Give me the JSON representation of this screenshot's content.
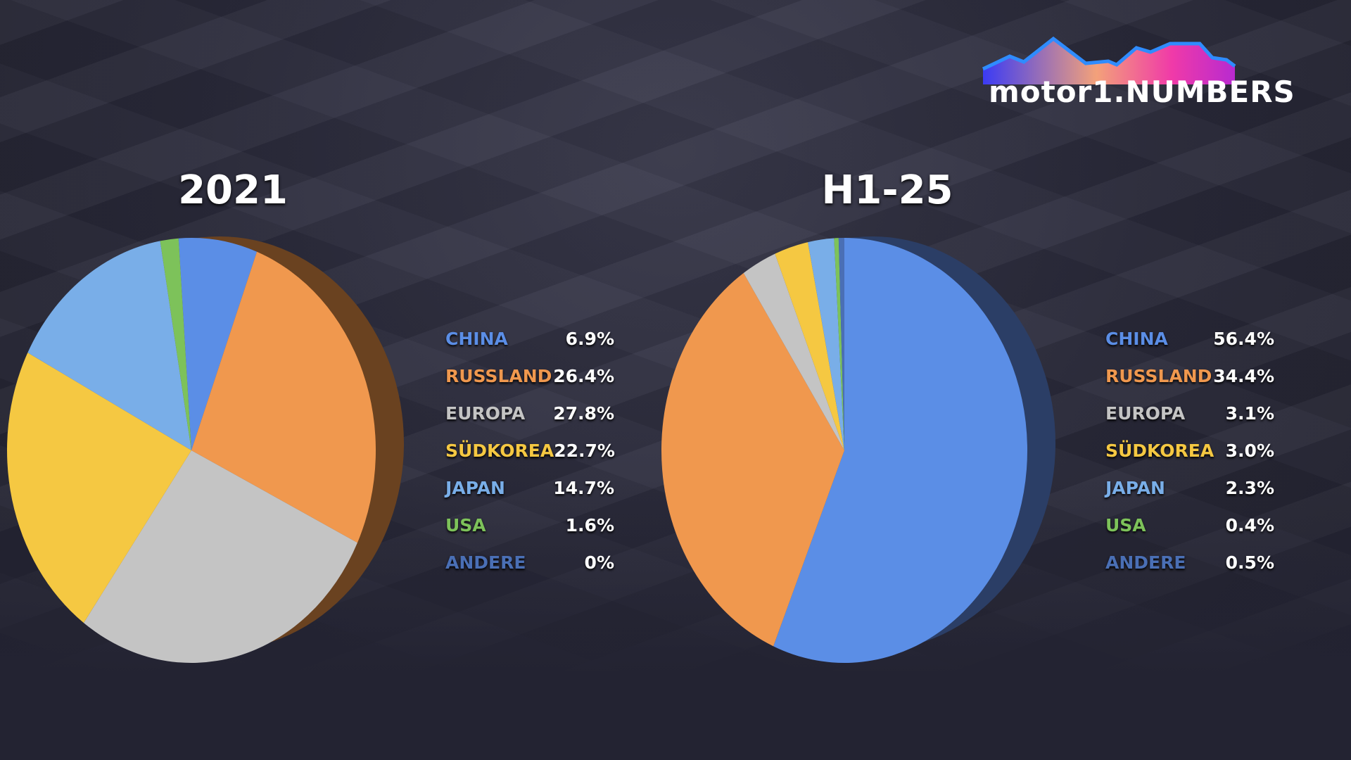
{
  "logo": {
    "text": "motor1.NUMBERS"
  },
  "chart_data": [
    {
      "type": "pie",
      "title": "2021",
      "categories": [
        "CHINA",
        "RUSSLAND",
        "EUROPA",
        "SÜDKOREA",
        "JAPAN",
        "USA",
        "ANDERE"
      ],
      "labels": [
        "6.9%",
        "26.4%",
        "27.8%",
        "22.7%",
        "14.7%",
        "1.6%",
        "0%"
      ],
      "values": [
        6.9,
        26.4,
        27.8,
        22.7,
        14.7,
        1.6,
        0
      ],
      "colors": [
        "#5b8ee6",
        "#f0984e",
        "#c4c4c4",
        "#f5c842",
        "#79aee8",
        "#7dc25a",
        "#4a6fb5"
      ],
      "legend": "right"
    },
    {
      "type": "pie",
      "title": "H1-25",
      "categories": [
        "CHINA",
        "RUSSLAND",
        "EUROPA",
        "SÜDKOREA",
        "JAPAN",
        "USA",
        "ANDERE"
      ],
      "labels": [
        "56.4%",
        "34.4%",
        "3.1%",
        "3.0%",
        "2.3%",
        "0.4%",
        "0.5%"
      ],
      "values": [
        56.4,
        34.4,
        3.1,
        3.0,
        2.3,
        0.4,
        0.5
      ],
      "colors": [
        "#5b8ee6",
        "#f0984e",
        "#c4c4c4",
        "#f5c842",
        "#79aee8",
        "#7dc25a",
        "#4a6fb5"
      ],
      "legend": "right"
    }
  ]
}
